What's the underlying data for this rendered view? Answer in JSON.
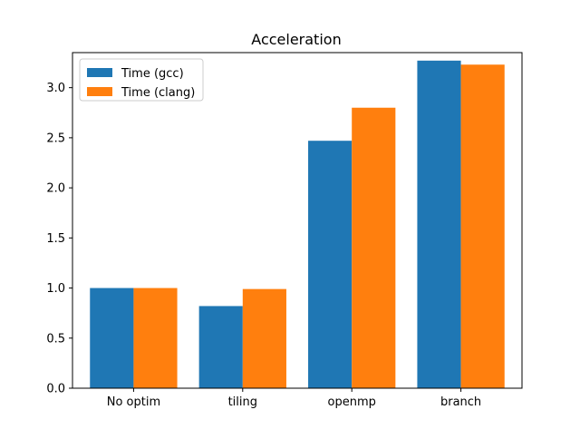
{
  "chart_data": {
    "type": "bar",
    "title": "Acceleration",
    "xlabel": "",
    "ylabel": "",
    "categories": [
      "No optim",
      "tiling",
      "openmp",
      "branch"
    ],
    "series": [
      {
        "name": "Time (gcc)",
        "values": [
          1.0,
          0.82,
          2.47,
          3.27
        ],
        "color": "#1f77b4"
      },
      {
        "name": "Time (clang)",
        "values": [
          1.0,
          0.99,
          2.8,
          3.23
        ],
        "color": "#ff7f0e"
      }
    ],
    "ylim": [
      0,
      3.35
    ],
    "yticks": [
      0.0,
      0.5,
      1.0,
      1.5,
      2.0,
      2.5,
      3.0
    ],
    "ytick_labels": [
      "0.0",
      "0.5",
      "1.0",
      "1.5",
      "2.0",
      "2.5",
      "3.0"
    ],
    "grid": false,
    "legend_position": "top-left"
  }
}
